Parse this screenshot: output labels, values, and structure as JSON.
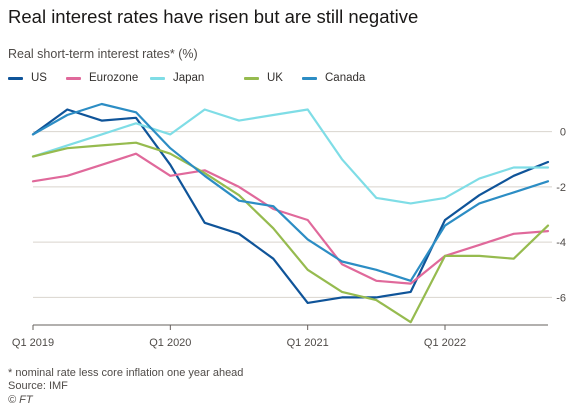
{
  "chart_data": {
    "type": "line",
    "title": "Real interest rates have risen but are still negative",
    "subtitle": "Real short-term interest rates* (%)",
    "x": [
      "2019Q1",
      "2019Q2",
      "2019Q3",
      "2019Q4",
      "2020Q1",
      "2020Q2",
      "2020Q3",
      "2020Q4",
      "2021Q1",
      "2021Q2",
      "2021Q3",
      "2021Q4",
      "2022Q1",
      "2022Q2",
      "2022Q3",
      "2022Q4"
    ],
    "x_tick_labels": [
      {
        "at": "2019Q1",
        "label": "Q1 2019"
      },
      {
        "at": "2020Q1",
        "label": "Q1 2020"
      },
      {
        "at": "2021Q1",
        "label": "Q1 2021"
      },
      {
        "at": "2022Q1",
        "label": "Q1 2022"
      }
    ],
    "ylim": [
      -7,
      1
    ],
    "y_ticks": [
      0,
      -2,
      -4,
      -6
    ],
    "y_tick_labels": [
      "0",
      "-2",
      "-4",
      "-6"
    ],
    "grid": "horizontal",
    "legend_position": "top-left",
    "series": [
      {
        "name": "US",
        "color": "#0f5499",
        "values": [
          -0.1,
          0.8,
          0.4,
          0.5,
          -1.2,
          -3.3,
          -3.7,
          -4.6,
          -6.2,
          -6.0,
          -6.0,
          -5.8,
          -3.2,
          -2.3,
          -1.6,
          -1.1
        ]
      },
      {
        "name": "Eurozone",
        "color": "#e0699b",
        "values": [
          -1.8,
          -1.6,
          -1.2,
          -0.8,
          -1.6,
          -1.4,
          -2.0,
          -2.8,
          -3.2,
          -4.8,
          -5.4,
          -5.5,
          -4.5,
          -4.1,
          -3.7,
          -3.6
        ]
      },
      {
        "name": "Japan",
        "color": "#7fdde6",
        "values": [
          -0.9,
          -0.5,
          -0.1,
          0.3,
          -0.1,
          0.8,
          0.4,
          0.6,
          0.8,
          -1.0,
          -2.4,
          -2.6,
          -2.4,
          -1.7,
          -1.3,
          -1.3
        ]
      },
      {
        "name": "UK",
        "color": "#96bb4f",
        "values": [
          -0.9,
          -0.6,
          -0.5,
          -0.4,
          -0.8,
          -1.5,
          -2.3,
          -3.5,
          -5.0,
          -5.8,
          -6.1,
          -6.9,
          -4.5,
          -4.5,
          -4.6,
          -3.4
        ]
      },
      {
        "name": "Canada",
        "color": "#2c8dc4",
        "values": [
          -0.1,
          0.6,
          1.0,
          0.7,
          -0.6,
          -1.6,
          -2.5,
          -2.7,
          -3.9,
          -4.7,
          -5.0,
          -5.4,
          -3.4,
          -2.6,
          -2.2,
          -1.8
        ]
      }
    ]
  },
  "footnote": "* nominal rate less core inflation one year ahead",
  "source": "Source: IMF",
  "credit": "© FT"
}
